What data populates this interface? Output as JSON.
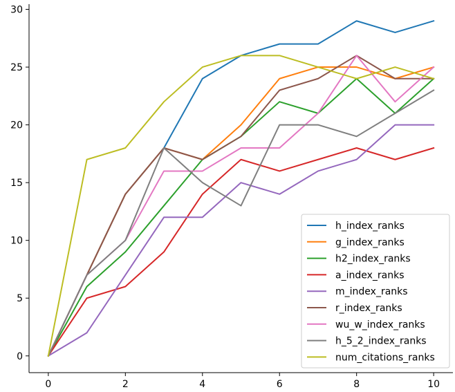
{
  "chart_data": {
    "type": "line",
    "x": [
      0,
      1,
      2,
      3,
      4,
      5,
      6,
      7,
      8,
      9,
      10
    ],
    "series": [
      {
        "name": "h_index_ranks",
        "color": "#1f77b4",
        "values": [
          0,
          7,
          14,
          18,
          24,
          26,
          27,
          27,
          29,
          28,
          29
        ]
      },
      {
        "name": "g_index_ranks",
        "color": "#ff7f0e",
        "values": [
          0,
          7,
          14,
          18,
          17,
          20,
          24,
          25,
          25,
          24,
          25
        ]
      },
      {
        "name": "h2_index_ranks",
        "color": "#2ca02c",
        "values": [
          0,
          6,
          9,
          13,
          17,
          19,
          22,
          21,
          24,
          21,
          24
        ]
      },
      {
        "name": "a_index_ranks",
        "color": "#d62728",
        "values": [
          0,
          5,
          6,
          9,
          14,
          17,
          16,
          17,
          18,
          17,
          18
        ]
      },
      {
        "name": "m_index_ranks",
        "color": "#9467bd",
        "values": [
          0,
          2,
          7,
          12,
          12,
          15,
          14,
          16,
          17,
          20,
          20
        ]
      },
      {
        "name": "r_index_ranks",
        "color": "#8c564b",
        "values": [
          0,
          7,
          14,
          18,
          17,
          19,
          23,
          24,
          26,
          24,
          24
        ]
      },
      {
        "name": "wu_w_index_ranks",
        "color": "#e377c2",
        "values": [
          0,
          7,
          10,
          16,
          16,
          18,
          18,
          21,
          26,
          22,
          25
        ]
      },
      {
        "name": "h_5_2_index_ranks",
        "color": "#7f7f7f",
        "values": [
          0,
          7,
          10,
          18,
          15,
          13,
          20,
          20,
          19,
          21,
          23
        ]
      },
      {
        "name": "num_citations_ranks",
        "color": "#bcbd22",
        "values": [
          0,
          17,
          18,
          22,
          25,
          26,
          26,
          25,
          24,
          25,
          24
        ]
      }
    ],
    "x_ticks": [
      "0",
      "2",
      "4",
      "6",
      "8",
      "10"
    ],
    "y_ticks": [
      "0",
      "5",
      "10",
      "15",
      "20",
      "25",
      "30"
    ],
    "xlim": [
      -0.5,
      10.5
    ],
    "ylim": [
      -1.45,
      30.45
    ],
    "title": "",
    "xlabel": "",
    "ylabel": "",
    "grid": false,
    "legend_position": "lower-right"
  }
}
